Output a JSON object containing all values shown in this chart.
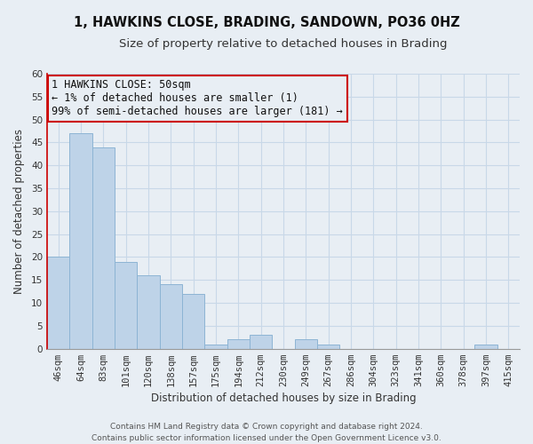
{
  "title": "1, HAWKINS CLOSE, BRADING, SANDOWN, PO36 0HZ",
  "subtitle": "Size of property relative to detached houses in Brading",
  "xlabel": "Distribution of detached houses by size in Brading",
  "ylabel": "Number of detached properties",
  "bar_labels": [
    "46sqm",
    "64sqm",
    "83sqm",
    "101sqm",
    "120sqm",
    "138sqm",
    "157sqm",
    "175sqm",
    "194sqm",
    "212sqm",
    "230sqm",
    "249sqm",
    "267sqm",
    "286sqm",
    "304sqm",
    "323sqm",
    "341sqm",
    "360sqm",
    "378sqm",
    "397sqm",
    "415sqm"
  ],
  "bar_values": [
    20,
    47,
    44,
    19,
    16,
    14,
    12,
    1,
    2,
    3,
    0,
    2,
    1,
    0,
    0,
    0,
    0,
    0,
    0,
    1,
    0
  ],
  "bar_color": "#bed3e8",
  "bar_edge_color": "#8db4d4",
  "annotation_box_text": "1 HAWKINS CLOSE: 50sqm\n← 1% of detached houses are smaller (1)\n99% of semi-detached houses are larger (181) →",
  "annotation_box_edgecolor": "#cc0000",
  "left_spine_color": "#cc0000",
  "ylim": [
    0,
    60
  ],
  "yticks": [
    0,
    5,
    10,
    15,
    20,
    25,
    30,
    35,
    40,
    45,
    50,
    55,
    60
  ],
  "grid_color": "#c8d8e8",
  "background_color": "#e8eef4",
  "footer_text": "Contains HM Land Registry data © Crown copyright and database right 2024.\nContains public sector information licensed under the Open Government Licence v3.0.",
  "title_fontsize": 10.5,
  "subtitle_fontsize": 9.5,
  "xlabel_fontsize": 8.5,
  "ylabel_fontsize": 8.5,
  "tick_fontsize": 7.5,
  "annotation_fontsize": 8.5,
  "footer_fontsize": 6.5
}
